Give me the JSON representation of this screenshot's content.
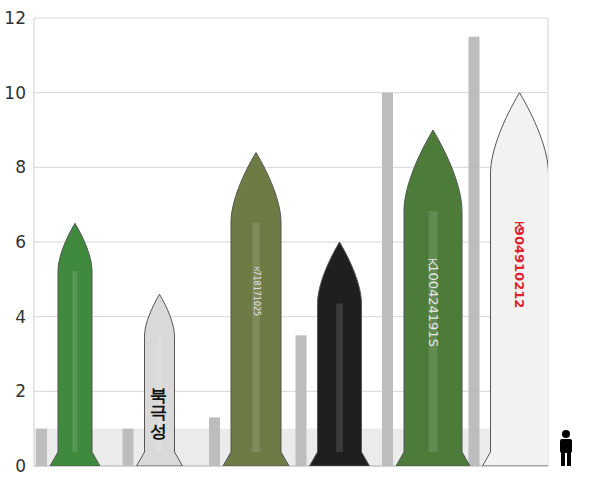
{
  "chart_data": {
    "type": "bar",
    "categories": [
      null,
      null,
      null,
      null,
      null,
      null
    ],
    "ylim": [
      0,
      12
    ],
    "yticks": [
      0,
      2,
      4,
      6,
      8,
      10,
      12
    ],
    "grid": true,
    "band": [
      0,
      1.0
    ],
    "series": [
      {
        "type": "bar",
        "color": "#bdbdbd",
        "values": [
          1.0,
          1.0,
          1.3,
          3.5,
          10.0,
          11.5
        ]
      },
      {
        "type": "missile",
        "colors": [
          "#3f8a3c",
          "#d9d9d9",
          "#6e7b45",
          "#1f1f1f",
          "#4d7c3a",
          "#f2f2f2"
        ],
        "values": [
          6.5,
          4.6,
          8.4,
          6.0,
          9.0,
          10.0
        ],
        "labels": [
          null,
          "북극성",
          "ㅈ718171025",
          null,
          "ㅈ100424191S",
          "ㅈ904910212"
        ]
      }
    ]
  }
}
